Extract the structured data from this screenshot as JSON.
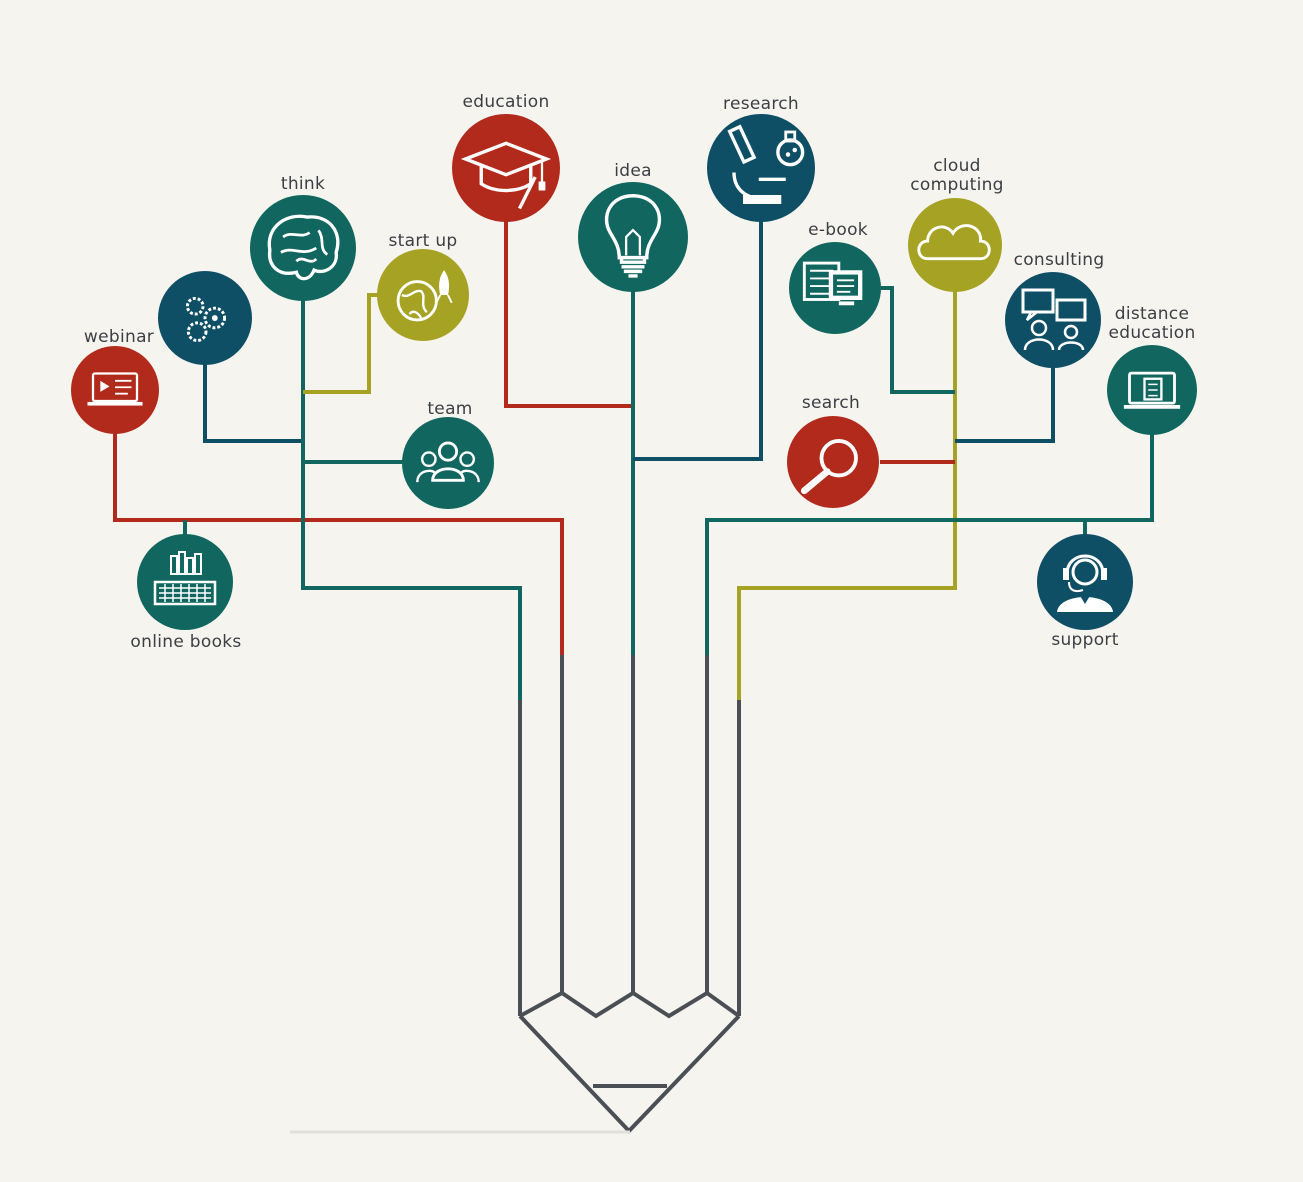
{
  "colors": {
    "background": "#f6f4ef",
    "red": "#b22a1c",
    "teal": "#11675f",
    "navy": "#0f4f66",
    "olive": "#a6a324",
    "gray": "#4a4f55"
  },
  "nodes": [
    {
      "id": "webinar",
      "label": "webinar",
      "color": "red",
      "icon": "laptop-video-icon"
    },
    {
      "id": "gears",
      "label": "",
      "color": "navy",
      "icon": "gears-icon"
    },
    {
      "id": "think",
      "label": "think",
      "color": "teal",
      "icon": "brain-icon"
    },
    {
      "id": "startup",
      "label": "start up",
      "color": "olive",
      "icon": "globe-rocket-icon"
    },
    {
      "id": "education",
      "label": "education",
      "color": "red",
      "icon": "graduation-cap-icon"
    },
    {
      "id": "team",
      "label": "team",
      "color": "teal",
      "icon": "team-icon"
    },
    {
      "id": "online-books",
      "label": "online books",
      "color": "teal",
      "icon": "books-keyboard-icon"
    },
    {
      "id": "idea",
      "label": "idea",
      "color": "teal",
      "icon": "lightbulb-icon"
    },
    {
      "id": "research",
      "label": "research",
      "color": "navy",
      "icon": "microscope-icon"
    },
    {
      "id": "ebook",
      "label": "e-book",
      "color": "teal",
      "icon": "ebook-devices-icon"
    },
    {
      "id": "cloud",
      "label": "cloud computing",
      "label_lines": [
        "cloud",
        "computing"
      ],
      "color": "olive",
      "icon": "cloud-icon"
    },
    {
      "id": "consulting",
      "label": "consulting",
      "color": "navy",
      "icon": "consulting-icon"
    },
    {
      "id": "distance",
      "label": "distance education",
      "label_lines": [
        "distance",
        "education"
      ],
      "color": "teal",
      "icon": "laptop-book-icon"
    },
    {
      "id": "search",
      "label": "search",
      "color": "red",
      "icon": "magnifier-icon"
    },
    {
      "id": "support",
      "label": "support",
      "color": "navy",
      "icon": "headset-icon"
    }
  ]
}
